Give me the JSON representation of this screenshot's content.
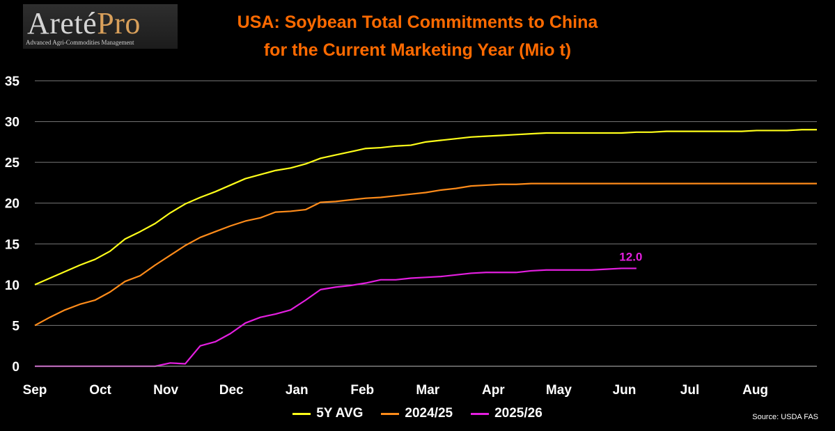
{
  "logo": {
    "wordmark_part1": "Areté",
    "wordmark_part2": "Pro",
    "tagline": "Advanced Agri-Commodities Management"
  },
  "source": "Source: USDA FAS",
  "chart_data": {
    "type": "line",
    "title": "USA: Soybean Total Commitments to China",
    "subtitle": "for the Current Marketing Year (Mio t)",
    "xlabel": "",
    "ylabel": "",
    "x_ticks": [
      "Sep",
      "Oct",
      "Nov",
      "Dec",
      "Jan",
      "Feb",
      "Mar",
      "Apr",
      "May",
      "Jun",
      "Jul",
      "Aug"
    ],
    "ylim": [
      0,
      35
    ],
    "y_ticks": [
      0,
      5,
      10,
      15,
      20,
      25,
      30,
      35
    ],
    "grid": "horizontal",
    "legend_position": "bottom",
    "x_unit": "week of marketing year",
    "series": [
      {
        "name": "5Y AVG",
        "color": "#ffff1a",
        "x": [
          0,
          1,
          2,
          3,
          4,
          5,
          6,
          7,
          8,
          9,
          10,
          11,
          12,
          13,
          14,
          15,
          16,
          17,
          18,
          19,
          20,
          21,
          22,
          23,
          24,
          25,
          26,
          27,
          28,
          29,
          30,
          31,
          32,
          33,
          34,
          35,
          36,
          37,
          38,
          39,
          40,
          41,
          42,
          43,
          44,
          45,
          46,
          47,
          48,
          49,
          50,
          51,
          52
        ],
        "values": [
          10.0,
          10.8,
          11.6,
          12.4,
          13.1,
          14.1,
          15.6,
          16.5,
          17.5,
          18.8,
          19.9,
          20.7,
          21.4,
          22.2,
          23.0,
          23.5,
          24.0,
          24.3,
          24.8,
          25.5,
          25.9,
          26.3,
          26.7,
          26.8,
          27.0,
          27.1,
          27.5,
          27.7,
          27.9,
          28.1,
          28.2,
          28.3,
          28.4,
          28.5,
          28.6,
          28.6,
          28.6,
          28.6,
          28.6,
          28.6,
          28.7,
          28.7,
          28.8,
          28.8,
          28.8,
          28.8,
          28.8,
          28.8,
          28.9,
          28.9,
          28.9,
          29.0,
          29.0
        ]
      },
      {
        "name": "2024/25",
        "color": "#ff8c1a",
        "x": [
          0,
          1,
          2,
          3,
          4,
          5,
          6,
          7,
          8,
          9,
          10,
          11,
          12,
          13,
          14,
          15,
          16,
          17,
          18,
          19,
          20,
          21,
          22,
          23,
          24,
          25,
          26,
          27,
          28,
          29,
          30,
          31,
          32,
          33,
          34,
          35,
          36,
          37,
          38,
          39,
          40,
          41,
          42,
          43,
          44,
          45,
          46,
          47,
          48,
          49,
          50,
          51,
          52
        ],
        "values": [
          5.0,
          6.0,
          6.9,
          7.6,
          8.1,
          9.1,
          10.4,
          11.1,
          12.4,
          13.6,
          14.8,
          15.8,
          16.5,
          17.2,
          17.8,
          18.2,
          18.9,
          19.0,
          19.2,
          20.1,
          20.2,
          20.4,
          20.6,
          20.7,
          20.9,
          21.1,
          21.3,
          21.6,
          21.8,
          22.1,
          22.2,
          22.3,
          22.3,
          22.4,
          22.4,
          22.4,
          22.4,
          22.4,
          22.4,
          22.4,
          22.4,
          22.4,
          22.4,
          22.4,
          22.4,
          22.4,
          22.4,
          22.4,
          22.4,
          22.4,
          22.4,
          22.4,
          22.4
        ]
      },
      {
        "name": "2025/26",
        "color": "#e41fe0",
        "x": [
          0,
          1,
          2,
          3,
          4,
          5,
          6,
          7,
          8,
          9,
          10,
          11,
          12,
          13,
          14,
          15,
          16,
          17,
          18,
          19,
          20,
          21,
          22,
          23,
          24,
          25,
          26,
          27,
          28,
          29,
          30,
          31,
          32,
          33,
          34,
          35,
          36,
          37,
          38,
          39,
          40
        ],
        "values": [
          0.0,
          0.0,
          0.0,
          0.0,
          0.0,
          0.0,
          0.0,
          0.0,
          0.0,
          0.4,
          0.3,
          2.5,
          3.0,
          4.0,
          5.3,
          6.0,
          6.4,
          6.9,
          8.1,
          9.4,
          9.7,
          9.9,
          10.2,
          10.6,
          10.6,
          10.8,
          10.9,
          11.0,
          11.2,
          11.4,
          11.5,
          11.5,
          11.5,
          11.7,
          11.8,
          11.8,
          11.8,
          11.8,
          11.9,
          12.0,
          12.0
        ],
        "end_label": "12.0"
      }
    ]
  }
}
